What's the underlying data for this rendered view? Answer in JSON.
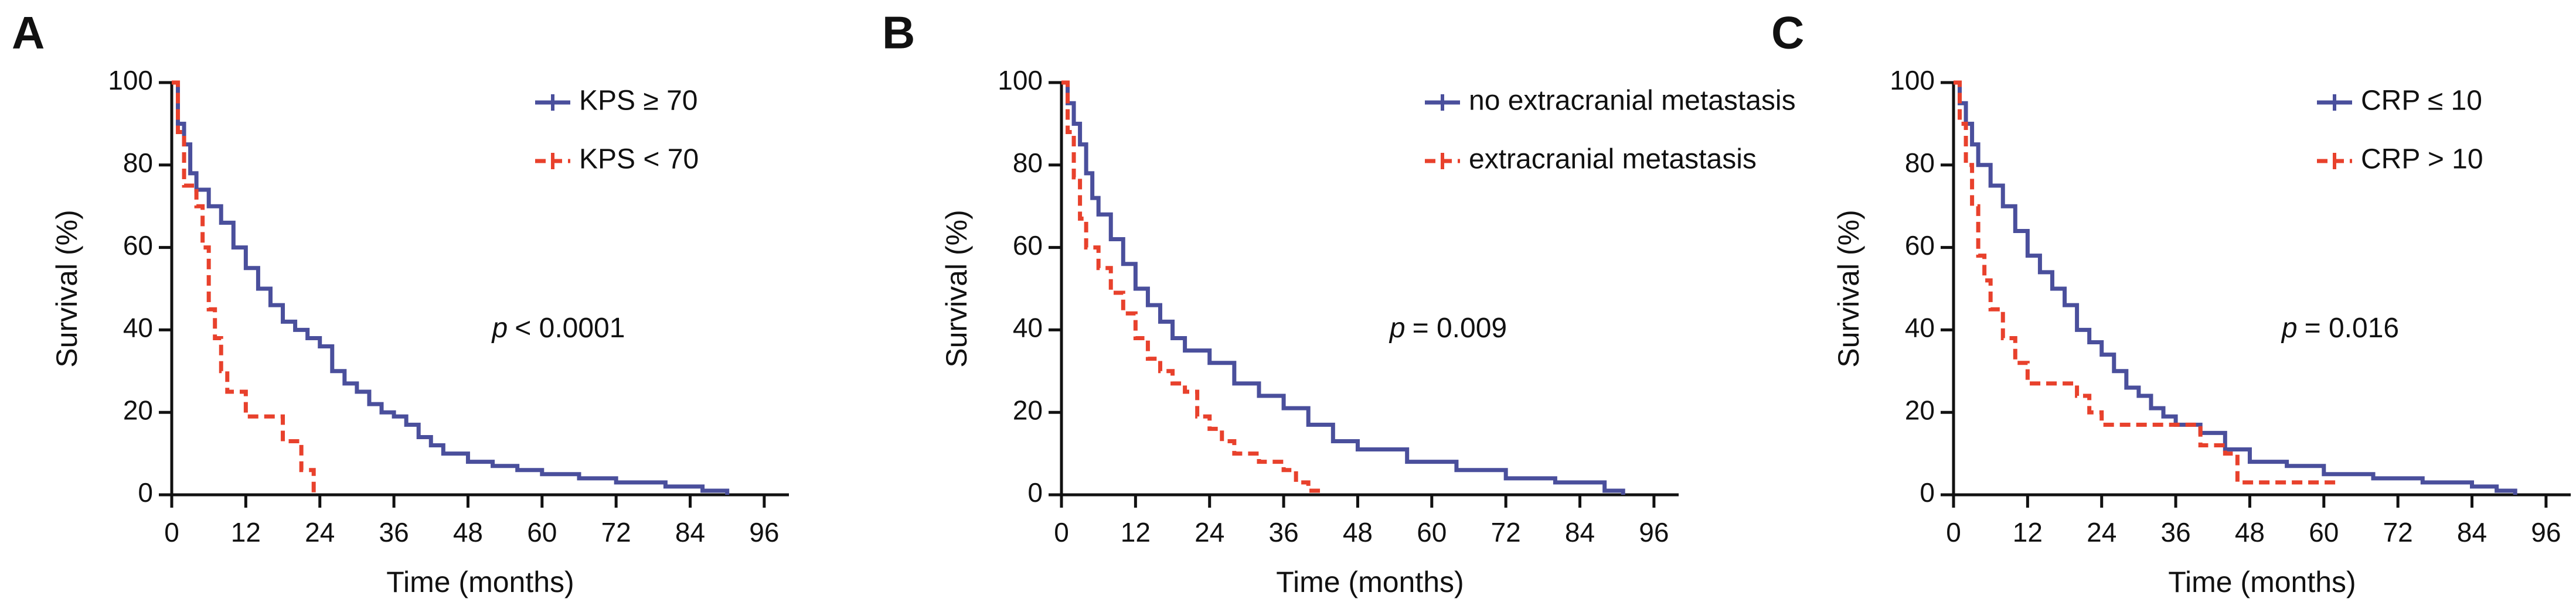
{
  "chart_data": [
    {
      "type": "step",
      "title": "A",
      "x_label": "Time (months)",
      "y_label": "Survival (%)",
      "xlim": [
        0,
        100
      ],
      "ylim": [
        0,
        100
      ],
      "xticks": [
        0,
        12,
        24,
        36,
        48,
        60,
        72,
        84,
        96
      ],
      "yticks": [
        0,
        20,
        40,
        60,
        80,
        100
      ],
      "legend": "upper right",
      "annotation_symbol": "p",
      "annotation": "< 0.0001",
      "series": [
        {
          "name": "KPS ≥ 70",
          "color": "#4a4f9c",
          "dash": false,
          "x": [
            0,
            1,
            2,
            3,
            4,
            6,
            8,
            10,
            12,
            14,
            16,
            18,
            20,
            22,
            24,
            26,
            28,
            30,
            32,
            34,
            36,
            38,
            40,
            42,
            44,
            48,
            52,
            56,
            60,
            66,
            72,
            80,
            86,
            90
          ],
          "values": [
            100,
            90,
            85,
            78,
            74,
            70,
            66,
            60,
            55,
            50,
            46,
            42,
            40,
            38,
            36,
            30,
            27,
            25,
            22,
            20,
            19,
            17,
            14,
            12,
            10,
            8,
            7,
            6,
            5,
            4,
            3,
            2,
            1,
            0
          ]
        },
        {
          "name": "KPS < 70",
          "color": "#e8412c",
          "dash": true,
          "x": [
            0,
            1,
            2,
            4,
            5,
            6,
            7,
            8,
            9,
            12,
            18,
            21,
            23
          ],
          "values": [
            100,
            88,
            75,
            70,
            60,
            45,
            38,
            30,
            25,
            19,
            13,
            6,
            0
          ]
        }
      ]
    },
    {
      "type": "step",
      "title": "B",
      "x_label": "Time (months)",
      "y_label": "Survival (%)",
      "xlim": [
        0,
        100
      ],
      "ylim": [
        0,
        100
      ],
      "xticks": [
        0,
        12,
        24,
        36,
        48,
        60,
        72,
        84,
        96
      ],
      "yticks": [
        0,
        20,
        40,
        60,
        80,
        100
      ],
      "legend": "upper right",
      "annotation_symbol": "p",
      "annotation": "= 0.009",
      "series": [
        {
          "name": "no extracranial metastasis",
          "color": "#4a4f9c",
          "dash": false,
          "x": [
            0,
            1,
            2,
            3,
            4,
            5,
            6,
            8,
            10,
            12,
            14,
            16,
            18,
            20,
            24,
            28,
            32,
            36,
            40,
            44,
            48,
            56,
            64,
            72,
            80,
            88,
            91
          ],
          "values": [
            100,
            95,
            90,
            85,
            78,
            72,
            68,
            62,
            56,
            50,
            46,
            42,
            38,
            35,
            32,
            27,
            24,
            21,
            17,
            13,
            11,
            8,
            6,
            4,
            3,
            1,
            0
          ]
        },
        {
          "name": "extracranial metastasis",
          "color": "#e8412c",
          "dash": true,
          "x": [
            0,
            1,
            2,
            3,
            4,
            6,
            8,
            10,
            12,
            14,
            16,
            18,
            20,
            22,
            24,
            26,
            28,
            32,
            36,
            38,
            40,
            42
          ],
          "values": [
            100,
            88,
            77,
            67,
            60,
            55,
            49,
            44,
            38,
            33,
            30,
            27,
            25,
            19,
            16,
            13,
            10,
            8,
            6,
            3,
            1,
            0
          ]
        }
      ]
    },
    {
      "type": "step",
      "title": "C",
      "x_label": "Time (months)",
      "y_label": "Survival (%)",
      "xlim": [
        0,
        100
      ],
      "ylim": [
        0,
        100
      ],
      "xticks": [
        0,
        12,
        24,
        36,
        48,
        60,
        72,
        84,
        96
      ],
      "yticks": [
        0,
        20,
        40,
        60,
        80,
        100
      ],
      "legend": "upper right",
      "annotation_symbol": "p",
      "annotation": "= 0.016",
      "series": [
        {
          "name": "CRP ≤ 10",
          "color": "#4a4f9c",
          "dash": false,
          "x": [
            0,
            1,
            2,
            3,
            4,
            6,
            8,
            10,
            12,
            14,
            16,
            18,
            20,
            22,
            24,
            26,
            28,
            30,
            32,
            34,
            36,
            40,
            44,
            48,
            54,
            60,
            68,
            76,
            84,
            88,
            91
          ],
          "values": [
            100,
            95,
            90,
            85,
            80,
            75,
            70,
            64,
            58,
            54,
            50,
            46,
            40,
            37,
            34,
            30,
            26,
            24,
            21,
            19,
            17,
            15,
            11,
            8,
            7,
            5,
            4,
            3,
            2,
            1,
            0
          ]
        },
        {
          "name": "CRP > 10",
          "color": "#e8412c",
          "dash": true,
          "x": [
            0,
            1,
            2,
            3,
            4,
            5,
            6,
            8,
            10,
            12,
            20,
            22,
            24,
            36,
            40,
            44,
            46,
            62
          ],
          "values": [
            100,
            90,
            80,
            70,
            58,
            52,
            45,
            38,
            32,
            27,
            24,
            20,
            17,
            17,
            12,
            10,
            3,
            3
          ]
        }
      ]
    }
  ]
}
